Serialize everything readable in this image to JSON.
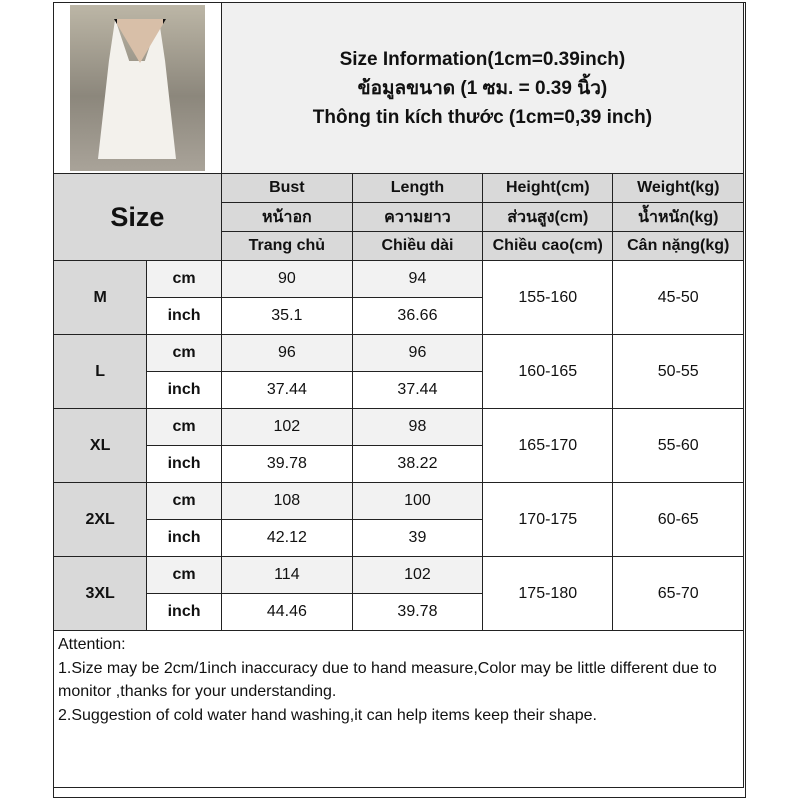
{
  "title_lines": [
    "Size Information(1cm=0.39inch)",
    "ข้อมูลขนาด (1 ซม. = 0.39 นิ้ว)",
    "Thông tin kích thước (1cm=0,39 inch)"
  ],
  "size_header": "Size",
  "columns": [
    {
      "en": "Bust",
      "th": "หน้าอก",
      "vi": "Trang chủ"
    },
    {
      "en": "Length",
      "th": "ความยาว",
      "vi": "Chiều dài"
    },
    {
      "en": "Height(cm)",
      "th": "ส่วนสูง(cm)",
      "vi": "Chiều cao(cm)"
    },
    {
      "en": "Weight(kg)",
      "th": "น้ำหนัก(kg)",
      "vi": "Cân nặng(kg)"
    }
  ],
  "units": {
    "cm": "cm",
    "inch": "inch"
  },
  "rows": [
    {
      "size": "M",
      "bust_cm": "90",
      "length_cm": "94",
      "bust_in": "35.1",
      "length_in": "36.66",
      "height": "155-160",
      "weight": "45-50"
    },
    {
      "size": "L",
      "bust_cm": "96",
      "length_cm": "96",
      "bust_in": "37.44",
      "length_in": "37.44",
      "height": "160-165",
      "weight": "50-55"
    },
    {
      "size": "XL",
      "bust_cm": "102",
      "length_cm": "98",
      "bust_in": "39.78",
      "length_in": "38.22",
      "height": "165-170",
      "weight": "55-60"
    },
    {
      "size": "2XL",
      "bust_cm": "108",
      "length_cm": "100",
      "bust_in": "42.12",
      "length_in": "39",
      "height": "170-175",
      "weight": "60-65"
    },
    {
      "size": "3XL",
      "bust_cm": "114",
      "length_cm": "102",
      "bust_in": "44.46",
      "length_in": "39.78",
      "height": "175-180",
      "weight": "65-70"
    }
  ],
  "notes": [
    "Attention:",
    "1.Size may be 2cm/1inch inaccuracy due to hand measure,Color may be little different due to monitor ,thanks for your understanding.",
    "2.Suggestion of cold water hand washing,it can help items keep their shape."
  ]
}
